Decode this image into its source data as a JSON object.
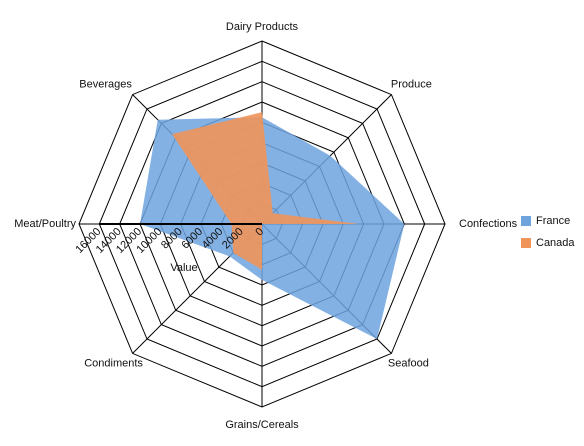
{
  "chart_data": {
    "type": "radar",
    "categories": [
      "Dairy Products",
      "Produce",
      "Confections",
      "Seafood",
      "Grains/Cereals",
      "Condiments",
      "Meat/Poultry",
      "Beverages"
    ],
    "series": [
      {
        "name": "France",
        "values": [
          10500,
          9500,
          14000,
          16000,
          5500,
          4500,
          12000,
          14500
        ],
        "color": "#6fa3de"
      },
      {
        "name": "Canada",
        "values": [
          11000,
          1500,
          9500,
          0,
          4500,
          4000,
          3000,
          12500
        ],
        "color": "#f0955a"
      }
    ],
    "axis": {
      "title": "Value",
      "min": 0,
      "max": 18000,
      "ticks": [
        0,
        2000,
        4000,
        6000,
        8000,
        10000,
        12000,
        14000,
        16000
      ],
      "tick_labels": [
        "0",
        "2000",
        "4000",
        "6000",
        "8000",
        "10000",
        "12000",
        "14000",
        "16000"
      ]
    },
    "legend": {
      "position": "right",
      "items": [
        "France",
        "Canada"
      ]
    },
    "grid": true
  }
}
